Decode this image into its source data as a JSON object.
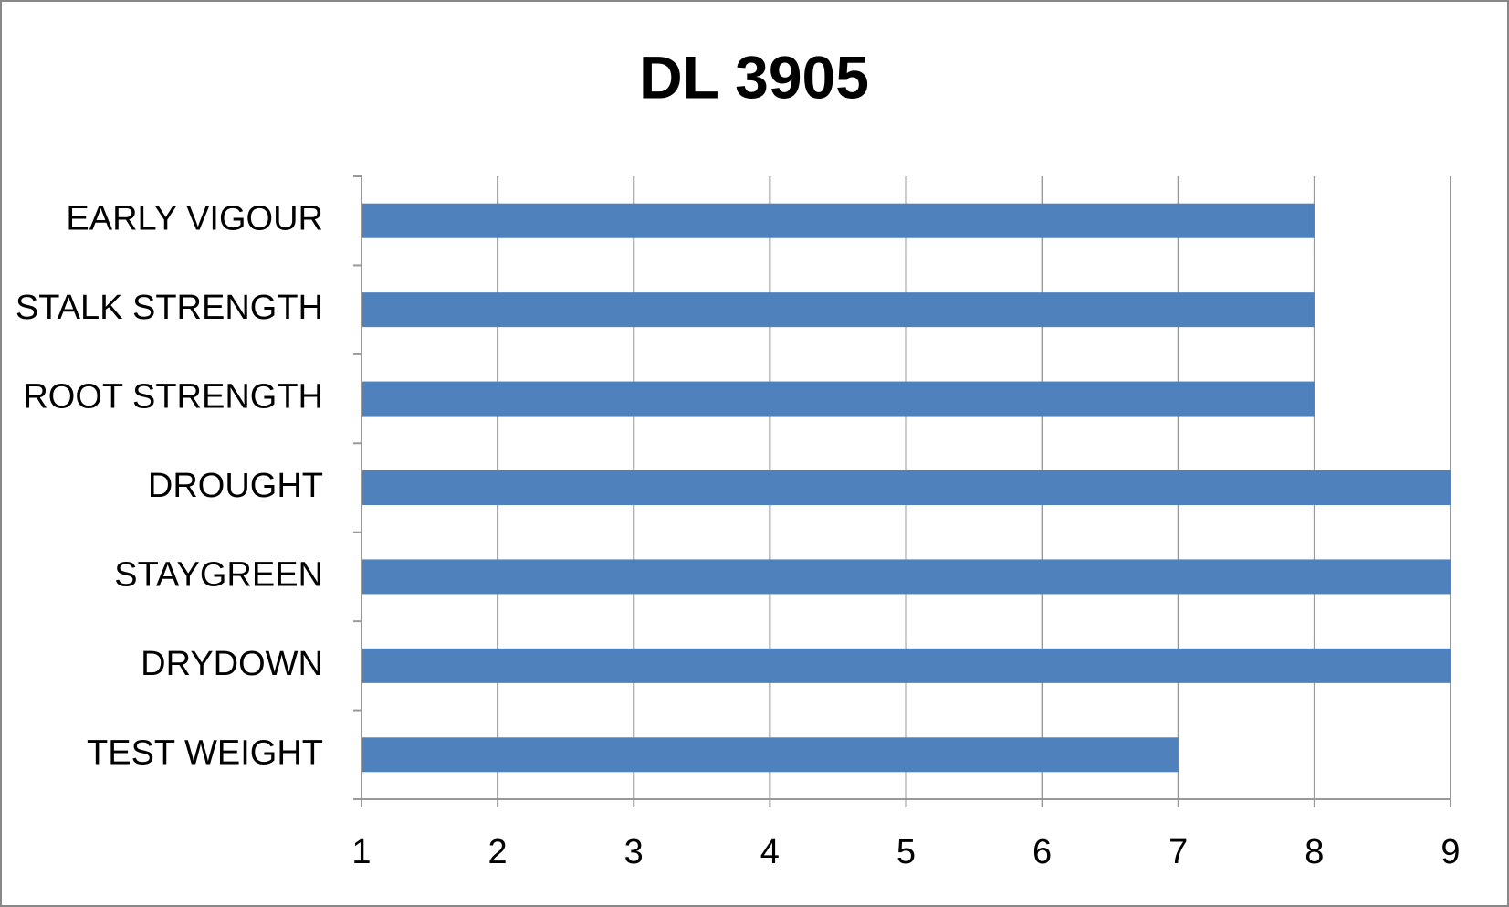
{
  "chart_data": {
    "type": "bar",
    "orientation": "horizontal",
    "title": "DL 3905",
    "categories": [
      "EARLY VIGOUR",
      "STALK STRENGTH",
      "ROOT STRENGTH",
      "DROUGHT",
      "STAYGREEN",
      "DRYDOWN",
      "TEST WEIGHT"
    ],
    "values": [
      8,
      8,
      8,
      9,
      9,
      9,
      7
    ],
    "color": "#4f81bd",
    "xlim": [
      1,
      9
    ],
    "xticks": [
      1,
      2,
      3,
      4,
      5,
      6,
      7,
      8,
      9
    ],
    "grid": true
  }
}
